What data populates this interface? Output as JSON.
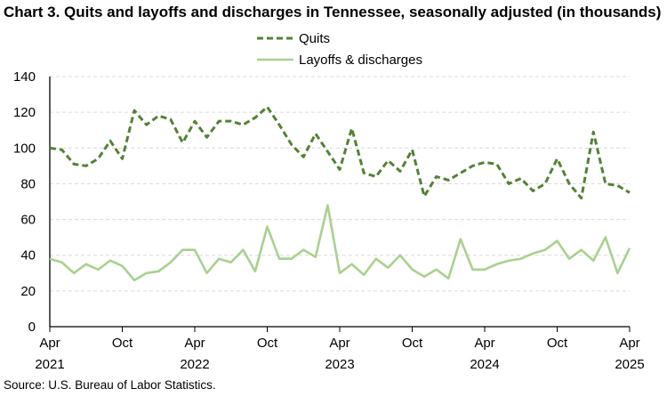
{
  "title": "Chart 3. Quits and layoffs and discharges in Tennessee, seasonally adjusted (in thousands)",
  "source": "Source: U.S. Bureau of Labor Statistics.",
  "chart_data": {
    "type": "line",
    "title": "Chart 3. Quits and layoffs and discharges in Tennessee, seasonally adjusted (in thousands)",
    "xlabel": "",
    "ylabel": "",
    "ylim": [
      0,
      140
    ],
    "yticks": [
      "0",
      "20",
      "40",
      "60",
      "80",
      "100",
      "120",
      "140"
    ],
    "grid": true,
    "legend_position": "top",
    "x_tick_labels": [
      {
        "month": "Apr",
        "year": "2021",
        "index": 0
      },
      {
        "month": "Oct",
        "year": "",
        "index": 6
      },
      {
        "month": "Apr",
        "year": "2022",
        "index": 12
      },
      {
        "month": "Oct",
        "year": "",
        "index": 18
      },
      {
        "month": "Apr",
        "year": "2023",
        "index": 24
      },
      {
        "month": "Oct",
        "year": "",
        "index": 30
      },
      {
        "month": "Apr",
        "year": "2024",
        "index": 36
      },
      {
        "month": "Oct",
        "year": "",
        "index": 42
      },
      {
        "month": "Apr",
        "year": "2025",
        "index": 48
      }
    ],
    "x": [
      "2021-04",
      "2021-05",
      "2021-06",
      "2021-07",
      "2021-08",
      "2021-09",
      "2021-10",
      "2021-11",
      "2021-12",
      "2022-01",
      "2022-02",
      "2022-03",
      "2022-04",
      "2022-05",
      "2022-06",
      "2022-07",
      "2022-08",
      "2022-09",
      "2022-10",
      "2022-11",
      "2022-12",
      "2023-01",
      "2023-02",
      "2023-03",
      "2023-04",
      "2023-05",
      "2023-06",
      "2023-07",
      "2023-08",
      "2023-09",
      "2023-10",
      "2023-11",
      "2023-12",
      "2024-01",
      "2024-02",
      "2024-03",
      "2024-04",
      "2024-05",
      "2024-06",
      "2024-07",
      "2024-08",
      "2024-09",
      "2024-10",
      "2024-11",
      "2024-12",
      "2025-01",
      "2025-02",
      "2025-03",
      "2025-04"
    ],
    "series": [
      {
        "name": "Quits",
        "color": "#548235",
        "style": "dashed",
        "values": [
          100,
          99,
          91,
          90,
          94,
          104,
          94,
          121,
          113,
          118,
          116,
          103,
          115,
          106,
          115,
          115,
          113,
          117,
          123,
          113,
          102,
          95,
          108,
          98,
          88,
          111,
          86,
          84,
          93,
          87,
          99,
          73,
          84,
          82,
          86,
          90,
          92,
          91,
          80,
          83,
          76,
          80,
          94,
          80,
          72,
          109,
          80,
          79,
          75
        ]
      },
      {
        "name": "Layoffs & discharges",
        "color": "#a9d18e",
        "style": "solid",
        "values": [
          38,
          36,
          30,
          35,
          32,
          37,
          34,
          26,
          30,
          31,
          36,
          43,
          43,
          30,
          38,
          36,
          43,
          31,
          56,
          38,
          38,
          43,
          39,
          68,
          30,
          35,
          29,
          38,
          33,
          40,
          32,
          28,
          32,
          27,
          49,
          32,
          32,
          35,
          37,
          38,
          41,
          43,
          48,
          38,
          43,
          37,
          50,
          30,
          44
        ]
      }
    ]
  }
}
